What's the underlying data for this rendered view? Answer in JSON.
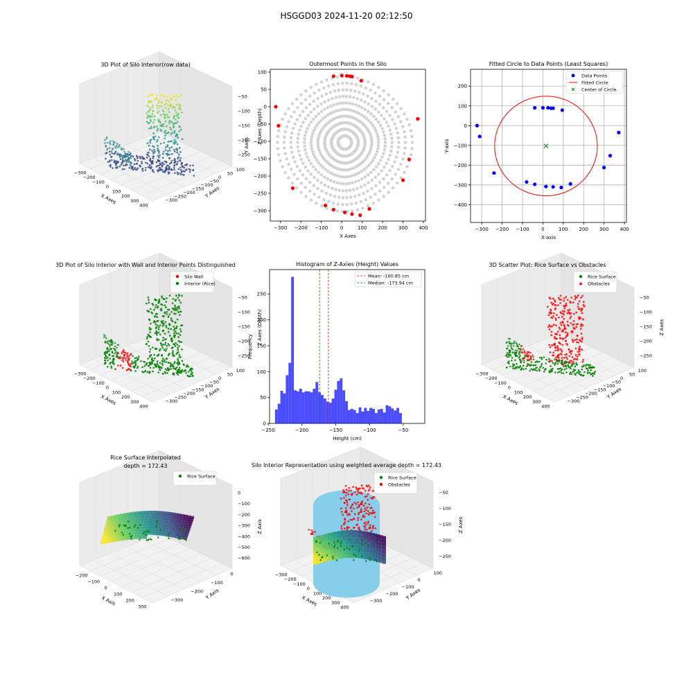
{
  "figure": {
    "suptitle": "HSGGD03 2024-11-20 02:12:50"
  },
  "colors": {
    "grey_points": "#d3d3d3",
    "outer_points": "#ff0000",
    "data_points": "#0000ff",
    "fitted_circle": "#ff0000",
    "center": "#008000",
    "wall": "#ff0000",
    "interior": "#008000",
    "histogram": "#0000ff",
    "mean_line": "#ff0000",
    "median_line": "#008000",
    "silo_cylinder": "#87ceeb"
  },
  "chart_data": [
    {
      "id": "p1",
      "type": "scatter3d",
      "title": "3D Plot of Silo Interior(row data)",
      "xlabel": "X Axes",
      "ylabel": "Y Axes",
      "zlabel": "Z Axes (Depth)",
      "xticks": [
        "−300",
        "−200",
        "−100",
        "0",
        "100",
        "200",
        "300",
        "400"
      ],
      "yticks": [
        "100",
        "50",
        "0",
        "−50",
        "−100",
        "−150",
        "−200",
        "−250",
        "−300"
      ],
      "zticks": [
        "−50",
        "−100",
        "−150",
        "−200",
        "−250"
      ],
      "colormap": "viridis"
    },
    {
      "id": "p2",
      "type": "scatter",
      "title": "Outermost Points in the Silo",
      "xlabel": "X Axes",
      "ylabel": "Y Axes",
      "xlim": [
        -350,
        410
      ],
      "ylim": [
        -330,
        108
      ],
      "xticks": [
        -300,
        -200,
        -100,
        0,
        100,
        200,
        300,
        400
      ],
      "xtick_labels": [
        "−300",
        "−200",
        "−100",
        "0",
        "100",
        "200",
        "300",
        "400"
      ],
      "yticks": [
        100,
        50,
        0,
        -50,
        -100,
        -150,
        -200,
        -250,
        -300
      ],
      "ytick_labels": [
        "100",
        "50",
        "0",
        "−50",
        "−100",
        "−150",
        "−200",
        "−250",
        "−300"
      ],
      "series": [
        {
          "points": [
            [
              -323,
              0
            ],
            [
              -310,
              -55
            ],
            [
              -240,
              -235
            ],
            [
              -80,
              -285
            ],
            [
              -40,
              -297
            ],
            [
              15,
              -305
            ],
            [
              50,
              -310
            ],
            [
              90,
              -313
            ],
            [
              135,
              -295
            ],
            [
              300,
              -212
            ],
            [
              330,
              -152
            ],
            [
              372,
              -35
            ],
            [
              -40,
              88
            ],
            [
              0,
              90
            ],
            [
              25,
              89
            ],
            [
              40,
              88
            ],
            [
              50,
              87
            ],
            [
              95,
              75
            ]
          ]
        }
      ]
    },
    {
      "id": "p3",
      "type": "scatter",
      "title": "Fitted Circle to Data Points (Least Squares)",
      "xlabel": "X-axis",
      "ylabel": "Y-axis",
      "xlim": [
        -355,
        410
      ],
      "ylim": [
        -490,
        285
      ],
      "xticks": [
        -300,
        -200,
        -100,
        0,
        100,
        200,
        300,
        400
      ],
      "xtick_labels": [
        "−300",
        "−200",
        "−100",
        "0",
        "100",
        "200",
        "300",
        "400"
      ],
      "yticks": [
        200,
        100,
        0,
        -100,
        -200,
        -300,
        -400
      ],
      "ytick_labels": [
        "200",
        "100",
        "0",
        "−100",
        "−200",
        "−300",
        "−400"
      ],
      "grid": true,
      "legend": [
        "Data Points",
        "Fitted Circle",
        "Center of Circle"
      ],
      "legend_position": "top-right",
      "circle": {
        "cx": 15,
        "cy": -103,
        "r": 252
      },
      "center": [
        15,
        -103
      ],
      "series": [
        {
          "points": [
            [
              -323,
              0
            ],
            [
              -310,
              -55
            ],
            [
              -240,
              -240
            ],
            [
              -80,
              -285
            ],
            [
              -40,
              -297
            ],
            [
              15,
              -308
            ],
            [
              50,
              -310
            ],
            [
              90,
              -313
            ],
            [
              135,
              -295
            ],
            [
              300,
              -212
            ],
            [
              330,
              -152
            ],
            [
              372,
              -35
            ],
            [
              -40,
              90
            ],
            [
              0,
              90
            ],
            [
              25,
              90
            ],
            [
              40,
              88
            ],
            [
              50,
              88
            ],
            [
              95,
              78
            ]
          ]
        }
      ]
    },
    {
      "id": "p4",
      "type": "scatter3d",
      "title": "3D Plot of Silo Interior with Wall and Interior Points Distinguished",
      "xlabel": "X Axes",
      "ylabel": "Y Axes",
      "zlabel": "Z Axes (Depth)",
      "xticks": [
        "−300",
        "−200",
        "−100",
        "0",
        "100",
        "200",
        "300",
        "400"
      ],
      "yticks": [
        "100",
        "50",
        "0",
        "−50",
        "−100",
        "−150",
        "−200",
        "−250",
        "−300"
      ],
      "zticks": [
        "−50",
        "−100",
        "−150",
        "−200",
        "−250"
      ],
      "legend": [
        "Silo Wall",
        "Interior (Rice)"
      ],
      "legend_position": "top-right"
    },
    {
      "id": "p5",
      "type": "bar",
      "title": "Histogram of Z-Axies (Height) Values",
      "xlabel": "Height (cm)",
      "ylabel": "Frequency",
      "xlim": [
        -248,
        -18
      ],
      "ylim": [
        0,
        297
      ],
      "xticks": [
        -250,
        -200,
        -150,
        -100,
        -50
      ],
      "xtick_labels": [
        "−250",
        "−200",
        "−150",
        "−100",
        "−50"
      ],
      "yticks": [
        0,
        50,
        100,
        150,
        200,
        250
      ],
      "ytick_labels": [
        "0",
        "50",
        "100",
        "150",
        "200",
        "250"
      ],
      "bin_start": -240,
      "bin_width": 4,
      "values": [
        27,
        38,
        63,
        58,
        93,
        117,
        283,
        64,
        62,
        67,
        60,
        62,
        62,
        60,
        67,
        80,
        60,
        55,
        48,
        42,
        40,
        48,
        65,
        82,
        87,
        64,
        43,
        26,
        28,
        26,
        20,
        31,
        23,
        30,
        24,
        30,
        28,
        20,
        27,
        28,
        21,
        35,
        33,
        29,
        25,
        30,
        20
      ],
      "mean": -160.85,
      "median": -173.94,
      "legend": [
        "Mean: -160.85 cm",
        "Median: -173.94 cm"
      ],
      "legend_position": "top-right"
    },
    {
      "id": "p6",
      "type": "scatter3d",
      "title": "3D Scatter Plot: Rice Surface vs Obstacles",
      "xlabel": "X Axes",
      "ylabel": "Y Axes",
      "zlabel": "Z Axes",
      "xticks": [
        "−300",
        "−200",
        "−100",
        "0",
        "100",
        "200",
        "300",
        "400"
      ],
      "yticks": [
        "100",
        "50",
        "0",
        "−50",
        "−100",
        "−150",
        "−200",
        "−250",
        "−300"
      ],
      "zticks": [
        "−50",
        "−100",
        "−150",
        "−200",
        "−250"
      ],
      "legend": [
        "Rice Surface",
        "Obstacles"
      ],
      "legend_position": "top-right"
    },
    {
      "id": "p7",
      "type": "surface3d",
      "title": "Rice Surface Interpolated",
      "subtitle": "depth = 172.43",
      "xlabel": "X Axis",
      "ylabel": "Y Axis",
      "zlabel": "Z Axis",
      "xticks": [
        "−200",
        "−100",
        "0",
        "100",
        "200",
        "300"
      ],
      "yticks": [
        "0",
        "−100",
        "−200",
        "−300"
      ],
      "zticks": [
        "0",
        "−100",
        "−200",
        "−300",
        "−400",
        "−500",
        "−600"
      ],
      "legend": [
        "Rice Surface"
      ],
      "legend_position": "top-right"
    },
    {
      "id": "p8",
      "type": "surface3d",
      "title": "Silo Interior Representation using weighted average depth = 172.43",
      "xlabel": "X Axes",
      "ylabel": "Y Axes",
      "zlabel": "Z Axes",
      "xticks": [
        "−300",
        "−200",
        "−100",
        "0",
        "100",
        "200",
        "300",
        "400"
      ],
      "yticks": [
        "100",
        "0",
        "−100",
        "−200",
        "−300"
      ],
      "zticks": [
        "−50",
        "−100",
        "−150",
        "−200",
        "−250"
      ],
      "legend": [
        "Rice Surface",
        "Obstacles"
      ],
      "legend_position": "top-right"
    }
  ]
}
